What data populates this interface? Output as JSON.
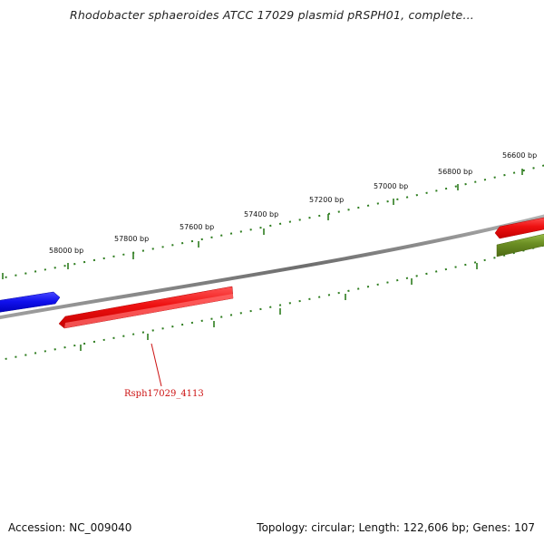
{
  "title": "Rhodobacter sphaeroides ATCC 17029 plasmid pRSPH01, complete...",
  "footer": {
    "accession": "Accession: NC_009040",
    "summary": "Topology: circular; Length: 122,606 bp; Genes: 107"
  },
  "ruler": {
    "labels": [
      "58000 bp",
      "57800 bp",
      "57600 bp",
      "57400 bp",
      "57200 bp",
      "57000 bp",
      "56800 bp",
      "56600 bp"
    ]
  },
  "genes": {
    "highlighted_label": "Rsph17029_4113"
  },
  "colors": {
    "backbone": "#8a8a8a",
    "tick": "#2e7d1f",
    "gene_red": "#ee1111",
    "gene_blue": "#1111ee",
    "gene_olive": "#6b8e23",
    "label_red": "#cc1111"
  }
}
